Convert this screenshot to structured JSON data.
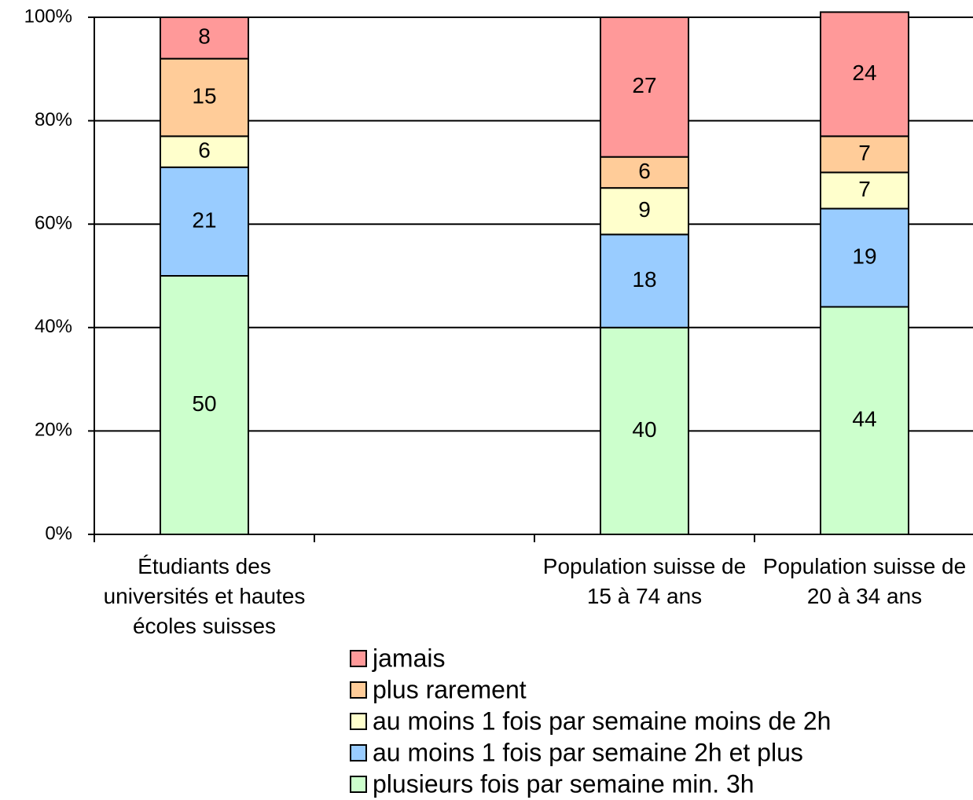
{
  "chart_data": {
    "type": "stacked_bar",
    "categories": [
      "Étudiants des universités et hautes écoles suisses",
      null,
      "Population suisse de 15 à 74 ans",
      "Population suisse de 20 à 34 ans"
    ],
    "series": [
      {
        "name": "jamais",
        "color": "#ff9999",
        "values": [
          8,
          null,
          27,
          24
        ]
      },
      {
        "name": "plus rarement",
        "color": "#ffcc99",
        "values": [
          15,
          null,
          6,
          7
        ]
      },
      {
        "name": "au moins 1 fois par semaine moins de 2h",
        "color": "#ffffcc",
        "values": [
          6,
          null,
          9,
          7
        ]
      },
      {
        "name": "au moins 1 fois par semaine 2h et plus",
        "color": "#99ccff",
        "values": [
          21,
          null,
          18,
          19
        ]
      },
      {
        "name": "plusieurs fois par semaine min. 3h",
        "color": "#ccffcc",
        "values": [
          50,
          null,
          40,
          44
        ]
      }
    ],
    "ylim": [
      0,
      100
    ],
    "yticks": [
      {
        "value": 0,
        "label": "0%"
      },
      {
        "value": 20,
        "label": "20%"
      },
      {
        "value": 40,
        "label": "40%"
      },
      {
        "value": 60,
        "label": "60%"
      },
      {
        "value": 80,
        "label": "80%"
      },
      {
        "value": 100,
        "label": "100%"
      }
    ],
    "grid": true,
    "legend": "bottom"
  }
}
